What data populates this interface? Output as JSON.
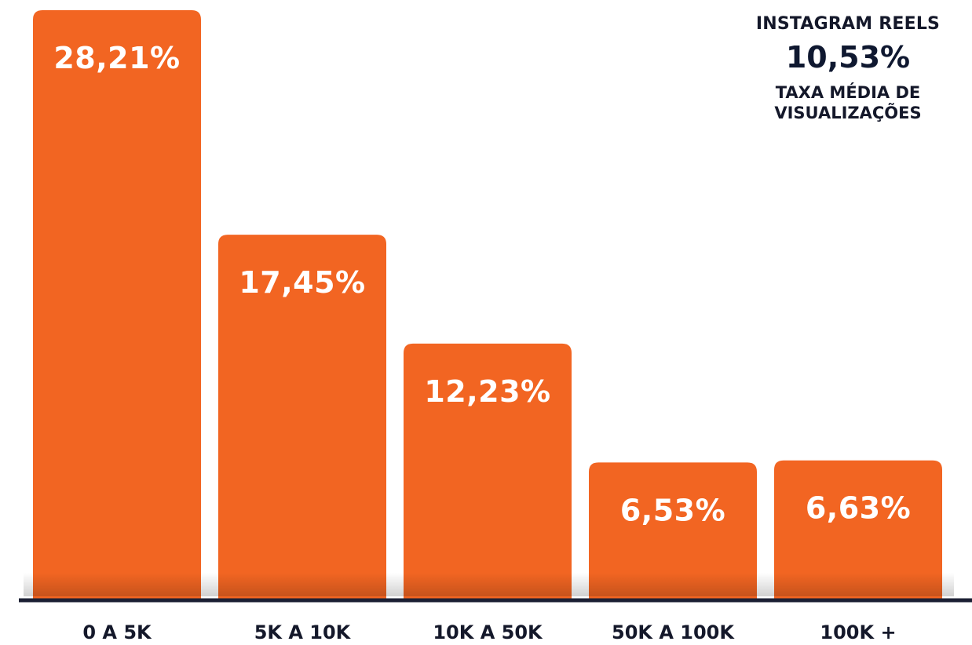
{
  "summary": {
    "title": "INSTAGRAM REELS",
    "value": "10,53%",
    "caption_line1": "TAXA MÉDIA DE",
    "caption_line2": "VISUALIZAÇÕES"
  },
  "colors": {
    "bar": "#f26522",
    "axis": "#1b1f33",
    "text_dark": "#14182a"
  },
  "chart_data": {
    "type": "bar",
    "categories": [
      "0 A 5K",
      "5K A 10K",
      "10K A 50K",
      "50K A 100K",
      "100K +"
    ],
    "values": [
      28.21,
      17.45,
      12.23,
      6.53,
      6.63
    ],
    "value_labels": [
      "28,21%",
      "17,45%",
      "12,23%",
      "6,53%",
      "6,63%"
    ],
    "title": "",
    "xlabel": "",
    "ylabel": "",
    "ylim": [
      0,
      28.21
    ],
    "grid": false
  }
}
